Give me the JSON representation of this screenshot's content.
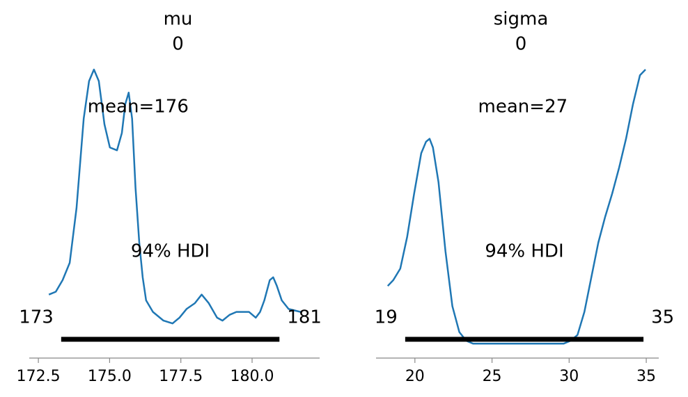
{
  "chart_data": [
    {
      "type": "density",
      "title": "mu",
      "subtitle": "0",
      "x": [
        172.87,
        173.11,
        173.35,
        173.6,
        173.84,
        174.09,
        174.28,
        174.45,
        174.62,
        174.82,
        175.01,
        175.26,
        175.43,
        175.55,
        175.67,
        175.79,
        175.91,
        176.04,
        176.16,
        176.28,
        176.52,
        176.89,
        177.21,
        177.45,
        177.7,
        177.99,
        178.23,
        178.48,
        178.77,
        178.96,
        179.21,
        179.45,
        179.7,
        179.89,
        180.13,
        180.28,
        180.43,
        180.62,
        180.74,
        180.87,
        181.04,
        181.28,
        181.7
      ],
      "values": [
        0.22,
        0.23,
        0.27,
        0.33,
        0.52,
        0.83,
        0.96,
        1.0,
        0.96,
        0.81,
        0.73,
        0.72,
        0.78,
        0.88,
        0.92,
        0.83,
        0.59,
        0.4,
        0.28,
        0.2,
        0.16,
        0.13,
        0.12,
        0.14,
        0.17,
        0.19,
        0.22,
        0.19,
        0.14,
        0.13,
        0.15,
        0.16,
        0.16,
        0.16,
        0.14,
        0.16,
        0.2,
        0.27,
        0.28,
        0.25,
        0.2,
        0.17,
        0.16
      ],
      "color": "#1f77b4",
      "xlim": [
        172.18,
        182.37
      ],
      "ylim": [
        0,
        1
      ],
      "xticks": [
        172.5,
        {
          "value": 175.0,
          "label": "175.0"
        },
        177.5,
        {
          "value": 180.0,
          "label": "180.0"
        }
      ],
      "mean": {
        "value": 176,
        "label": "mean=176"
      },
      "hdi_label": "94% HDI",
      "hdi": [
        {
          "value": 173.3,
          "label": "173"
        },
        {
          "value": 180.96,
          "label": "181"
        }
      ]
    },
    {
      "type": "density",
      "title": "sigma",
      "subtitle": "0",
      "x": [
        18.24,
        18.6,
        19.05,
        19.5,
        19.95,
        20.41,
        20.72,
        20.95,
        21.17,
        21.53,
        21.98,
        22.43,
        22.88,
        23.33,
        23.78,
        24.68,
        27.39,
        29.64,
        30.09,
        30.54,
        30.99,
        31.44,
        31.89,
        32.34,
        32.79,
        33.24,
        33.69,
        34.14,
        34.59,
        34.95
      ],
      "values": [
        0.25,
        0.27,
        0.31,
        0.42,
        0.57,
        0.71,
        0.75,
        0.76,
        0.73,
        0.61,
        0.37,
        0.18,
        0.09,
        0.06,
        0.05,
        0.05,
        0.05,
        0.05,
        0.06,
        0.08,
        0.16,
        0.28,
        0.4,
        0.49,
        0.57,
        0.66,
        0.76,
        0.88,
        0.98,
        1.0
      ],
      "color": "#1f77b4",
      "xlim": [
        17.48,
        35.81
      ],
      "ylim": [
        0,
        1
      ],
      "xticks": [
        20,
        25,
        30,
        35
      ],
      "mean": {
        "value": 27,
        "label": "mean=27"
      },
      "hdi_label": "94% HDI",
      "hdi": [
        {
          "value": 19.37,
          "label": "19"
        },
        {
          "value": 34.82,
          "label": "35"
        }
      ]
    }
  ]
}
